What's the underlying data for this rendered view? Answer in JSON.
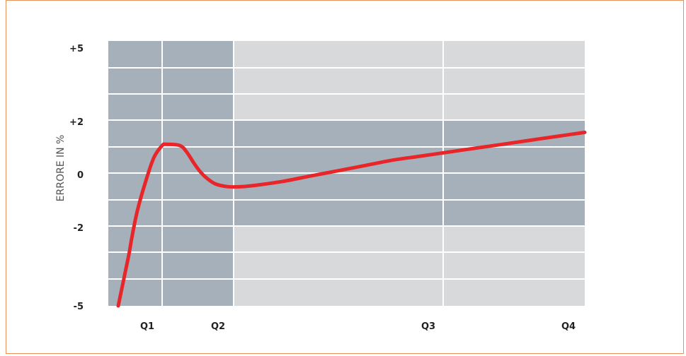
{
  "chart_data": {
    "type": "line",
    "ylabel": "ERRORE IN %",
    "xlabel": "",
    "y_ticks": [
      "+5",
      "+2",
      "0",
      "-2",
      "-5"
    ],
    "x_ticks": [
      "Q1",
      "Q2",
      "Q3",
      "Q4"
    ],
    "ylim": [
      -5,
      5
    ],
    "grid": true,
    "colors": {
      "line": "#e8262a",
      "band_dark": "#a6b0ba",
      "band_light": "#d8d9db",
      "grid": "#ffffff",
      "frame": "#e8915a"
    },
    "series": [
      {
        "x": [
          0.0,
          0.08,
          0.16,
          0.2,
          0.28,
          0.4,
          0.52,
          0.64,
          0.7,
          0.9,
          1.0,
          1.1,
          1.2,
          1.3,
          1.42,
          1.6,
          1.8,
          2.0,
          2.4,
          2.8,
          3.2,
          3.6,
          4.0,
          4.4,
          4.8,
          5.2,
          5.6,
          6.0,
          6.4,
          6.8
        ],
        "y": [
          -5.0,
          -4.0,
          -3.0,
          -2.4,
          -1.4,
          -0.3,
          0.6,
          1.05,
          1.1,
          1.05,
          0.8,
          0.4,
          0.05,
          -0.2,
          -0.4,
          -0.5,
          -0.5,
          -0.45,
          -0.3,
          -0.1,
          0.1,
          0.3,
          0.5,
          0.65,
          0.8,
          0.95,
          1.1,
          1.25,
          1.4,
          1.55
        ]
      }
    ]
  }
}
